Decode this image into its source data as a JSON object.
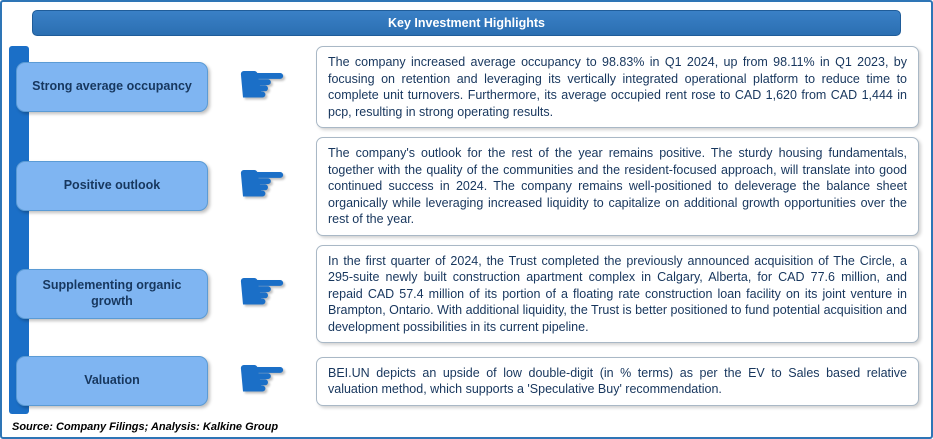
{
  "header": {
    "title": "Key Investment Highlights"
  },
  "icons": {
    "pointer": "☛"
  },
  "rows": [
    {
      "label": "Strong average occupancy",
      "text": "The company increased average occupancy to 98.83% in Q1 2024, up from 98.11% in Q1 2023, by focusing on retention and leveraging its vertically integrated operational platform to reduce time to complete unit turnovers. Furthermore, its average occupied rent rose to CAD 1,620 from CAD 1,444 in pcp, resulting in strong operating results."
    },
    {
      "label": "Positive outlook",
      "text": "The company's outlook for the rest of the year remains positive. The sturdy housing fundamentals, together with the quality of the communities and the resident-focused approach, will translate into good continued success in 2024. The company remains well-positioned to deleverage the balance sheet organically while leveraging increased liquidity to capitalize on additional growth opportunities over the rest of the year."
    },
    {
      "label": "Supplementing organic growth",
      "text": "In the first quarter of 2024, the Trust completed the previously announced acquisition of The Circle, a 295-suite newly built construction apartment complex in Calgary, Alberta, for CAD 77.6 million, and repaid CAD 57.4 million of its portion of a floating rate construction loan facility on its joint venture in Brampton, Ontario. With additional liquidity, the Trust is better positioned to fund potential acquisition and development possibilities in its current pipeline."
    },
    {
      "label": "Valuation",
      "text": "BEI.UN depicts an upside of low double-digit (in % terms) as per the EV to Sales based relative valuation method, which supports a 'Speculative Buy' recommendation."
    }
  ],
  "footer": {
    "source": "Source: Company Filings; Analysis: Kalkine Group"
  },
  "colors": {
    "header_blue": "#2E75B6",
    "accent_blue": "#1B6FC7",
    "label_fill": "#7FB5F2",
    "label_text": "#17375E",
    "body_text": "#17365D",
    "box_border": "#A9B8C6"
  }
}
